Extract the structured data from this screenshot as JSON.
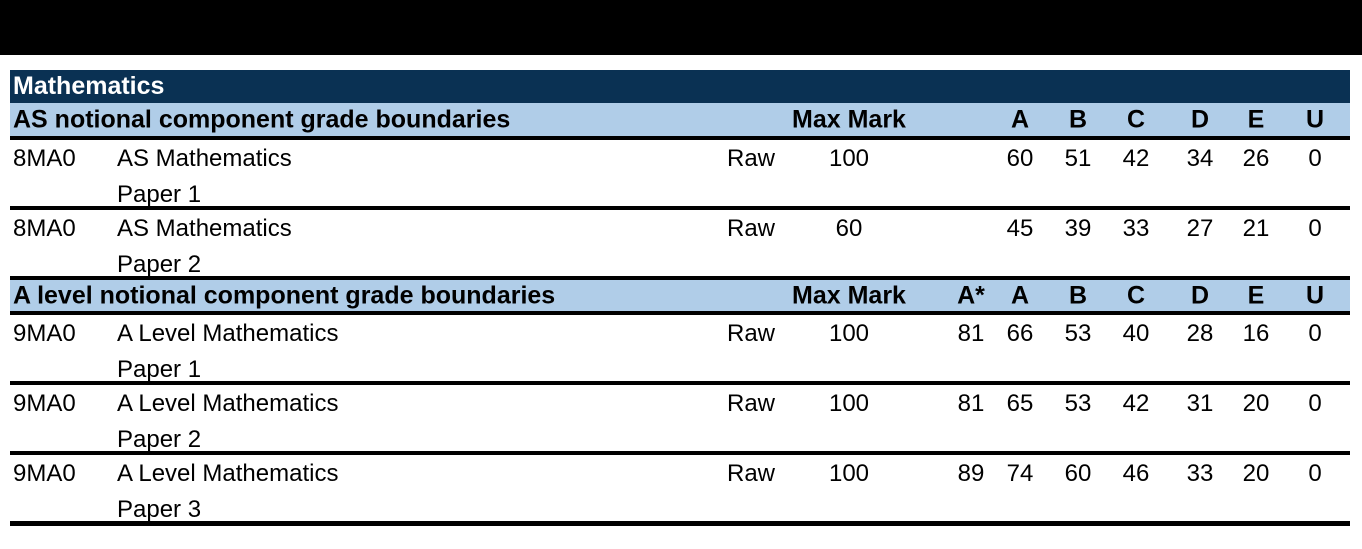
{
  "colors": {
    "top_bar": "#000000",
    "navy_header": "#0a3153",
    "light_blue_header": "#b0cde8",
    "border": "#000000",
    "subject_text": "#ffffff",
    "body_text": "#000000"
  },
  "table": {
    "subject": "Mathematics",
    "as_section": {
      "title": "AS notional component grade boundaries",
      "max_mark_label": "Max Mark",
      "grades": {
        "a": "A",
        "b": "B",
        "c": "C",
        "d": "D",
        "e": "E",
        "u": "U"
      }
    },
    "alevel_section": {
      "title": "A level notional component grade boundaries",
      "max_mark_label": "Max Mark",
      "grades": {
        "astar": "A*",
        "a": "A",
        "b": "B",
        "c": "C",
        "d": "D",
        "e": "E",
        "u": "U"
      }
    },
    "rows": [
      {
        "code": "8MA0",
        "name": "AS Mathematics",
        "paper": "Paper 1",
        "type": "Raw",
        "max": "100",
        "astar": "",
        "a": "60",
        "b": "51",
        "c": "42",
        "d": "34",
        "e": "26",
        "u": "0"
      },
      {
        "code": "8MA0",
        "name": "AS Mathematics",
        "paper": "Paper 2",
        "type": "Raw",
        "max": "60",
        "astar": "",
        "a": "45",
        "b": "39",
        "c": "33",
        "d": "27",
        "e": "21",
        "u": "0"
      },
      {
        "code": "9MA0",
        "name": "A Level Mathematics",
        "paper": "Paper 1",
        "type": "Raw",
        "max": "100",
        "astar": "81",
        "a": "66",
        "b": "53",
        "c": "40",
        "d": "28",
        "e": "16",
        "u": "0"
      },
      {
        "code": "9MA0",
        "name": "A Level Mathematics",
        "paper": "Paper 2",
        "type": "Raw",
        "max": "100",
        "astar": "81",
        "a": "65",
        "b": "53",
        "c": "42",
        "d": "31",
        "e": "20",
        "u": "0"
      },
      {
        "code": "9MA0",
        "name": "A Level Mathematics",
        "paper": "Paper 3",
        "type": "Raw",
        "max": "100",
        "astar": "89",
        "a": "74",
        "b": "60",
        "c": "46",
        "d": "33",
        "e": "20",
        "u": "0"
      }
    ]
  }
}
